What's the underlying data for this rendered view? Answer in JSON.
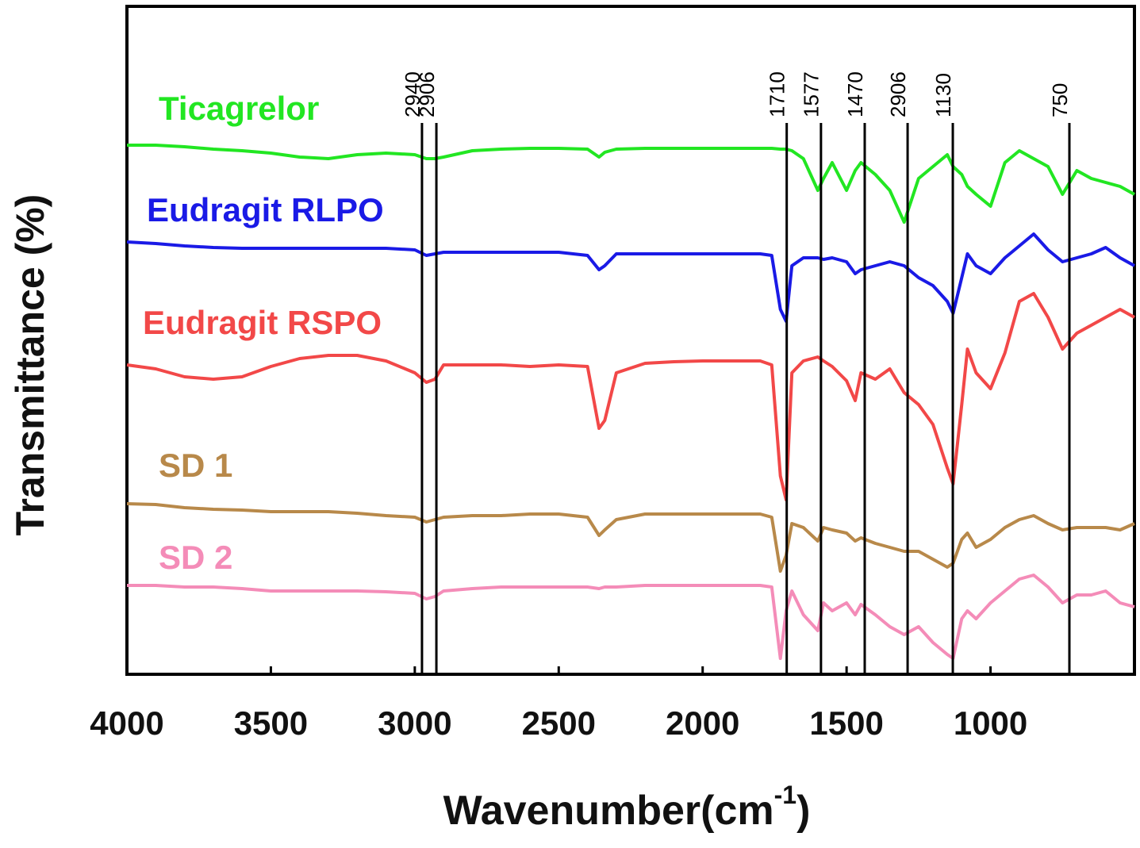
{
  "chart_data": {
    "type": "line",
    "xlabel": {
      "text": "Wavenumber(cm",
      "sup": "-1",
      "end": ")"
    },
    "ylabel": "Transmittance (%)",
    "xlim": [
      4000,
      500
    ],
    "xticks": [
      4000,
      3500,
      3000,
      2500,
      2000,
      1500,
      1000
    ],
    "ylim": [
      0,
      842
    ],
    "x": [
      4000,
      3900,
      3800,
      3700,
      3600,
      3500,
      3400,
      3300,
      3200,
      3100,
      3000,
      2960,
      2930,
      2900,
      2800,
      2700,
      2600,
      2500,
      2400,
      2360,
      2340,
      2300,
      2200,
      2100,
      2000,
      1900,
      1800,
      1760,
      1730,
      1710,
      1690,
      1650,
      1600,
      1580,
      1550,
      1500,
      1470,
      1450,
      1400,
      1350,
      1300,
      1250,
      1200,
      1150,
      1130,
      1100,
      1080,
      1050,
      1000,
      950,
      900,
      850,
      800,
      750,
      700,
      650,
      600,
      550,
      500
    ],
    "series": [
      {
        "name": "Ticagrelor",
        "color": "#22e622",
        "values": [
          667,
          667,
          665,
          662,
          660,
          657,
          652,
          650,
          655,
          657,
          655,
          650,
          650,
          652,
          660,
          662,
          663,
          663,
          662,
          652,
          658,
          662,
          663,
          663,
          663,
          663,
          663,
          663,
          662,
          662,
          660,
          650,
          610,
          625,
          645,
          610,
          635,
          645,
          630,
          610,
          570,
          625,
          640,
          655,
          640,
          630,
          615,
          605,
          590,
          645,
          660,
          650,
          640,
          605,
          635,
          625,
          620,
          615,
          605
        ]
      },
      {
        "name": "Eudragit RLPO",
        "color": "#1a1ae6",
        "values": [
          545,
          543,
          540,
          538,
          537,
          537,
          537,
          537,
          537,
          537,
          535,
          528,
          530,
          532,
          532,
          532,
          532,
          532,
          528,
          510,
          515,
          530,
          530,
          530,
          530,
          530,
          530,
          528,
          460,
          445,
          515,
          525,
          525,
          523,
          525,
          520,
          505,
          510,
          515,
          520,
          515,
          500,
          490,
          470,
          455,
          500,
          530,
          515,
          505,
          525,
          540,
          555,
          535,
          520,
          525,
          530,
          538,
          525,
          515
        ]
      },
      {
        "name": "Eudragit RSPO",
        "color": "#f24848",
        "values": [
          390,
          385,
          375,
          372,
          375,
          388,
          398,
          402,
          402,
          395,
          380,
          368,
          372,
          390,
          390,
          390,
          388,
          390,
          388,
          310,
          320,
          380,
          392,
          394,
          395,
          395,
          395,
          390,
          250,
          220,
          380,
          395,
          400,
          395,
          388,
          370,
          345,
          380,
          372,
          385,
          355,
          340,
          315,
          260,
          240,
          340,
          410,
          380,
          360,
          405,
          470,
          480,
          450,
          410,
          430,
          440,
          450,
          460,
          450
        ]
      },
      {
        "name": "SD 1",
        "color": "#b8894a",
        "values": [
          215,
          214,
          210,
          208,
          207,
          205,
          205,
          205,
          203,
          200,
          198,
          192,
          195,
          198,
          200,
          200,
          202,
          202,
          198,
          175,
          182,
          195,
          202,
          202,
          202,
          202,
          202,
          198,
          130,
          150,
          190,
          185,
          168,
          185,
          182,
          178,
          168,
          172,
          165,
          160,
          155,
          155,
          145,
          135,
          140,
          170,
          178,
          160,
          170,
          185,
          195,
          200,
          190,
          182,
          185,
          185,
          185,
          182,
          190
        ]
      },
      {
        "name": "SD 2",
        "color": "#f48cb8",
        "values": [
          112,
          112,
          110,
          110,
          108,
          105,
          105,
          105,
          105,
          104,
          102,
          95,
          98,
          105,
          108,
          110,
          110,
          110,
          110,
          108,
          110,
          110,
          112,
          112,
          112,
          112,
          112,
          110,
          20,
          80,
          105,
          75,
          55,
          90,
          80,
          90,
          75,
          88,
          75,
          60,
          50,
          60,
          40,
          25,
          20,
          70,
          80,
          70,
          90,
          105,
          120,
          125,
          110,
          90,
          100,
          100,
          105,
          90,
          85
        ]
      }
    ],
    "markers": [
      {
        "label": "2940",
        "x": 2975
      },
      {
        "label": "2906",
        "x": 2925
      },
      {
        "label": "1710",
        "x": 1708
      },
      {
        "label": "1577",
        "x": 1589
      },
      {
        "label": "1470",
        "x": 1437
      },
      {
        "label": "2906",
        "x": 1288
      },
      {
        "label": "1130",
        "x": 1131
      },
      {
        "label": "750",
        "x": 726
      }
    ]
  }
}
